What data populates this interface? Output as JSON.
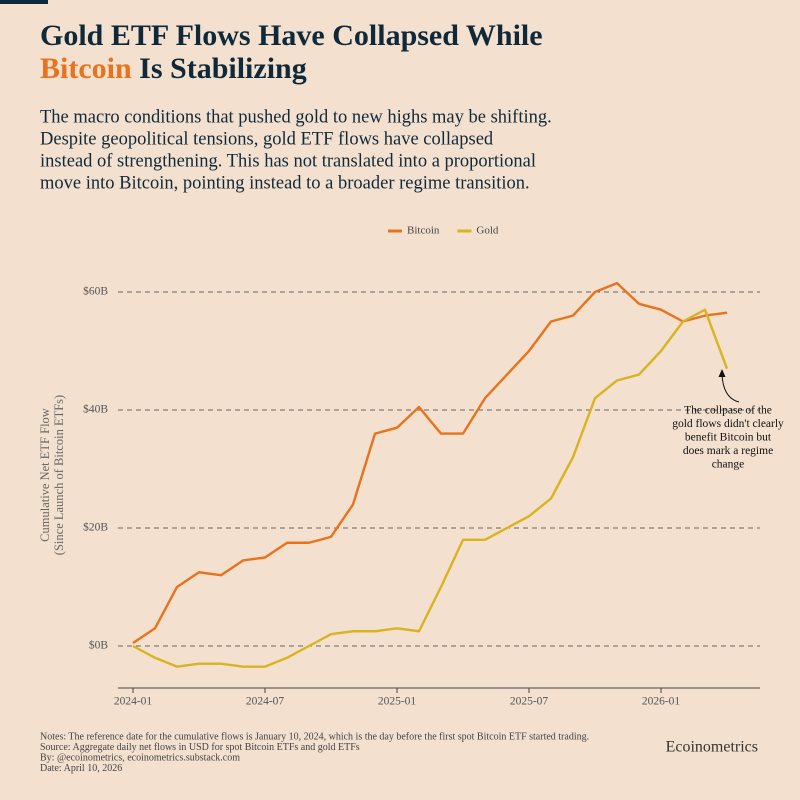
{
  "chart_data": {
    "type": "line",
    "title": {
      "line1": "Gold ETF Flows Have Collapsed While",
      "highlight": "Bitcoin",
      "rest": "Is Stabilizing"
    },
    "subtitle": [
      "The macro conditions that pushed gold to new highs may be shifting.",
      "Despite geopolitical tensions, gold ETF flows have collapsed",
      "instead of strengthening. This has not translated into a proportional",
      "move into Bitcoin, pointing instead to a broader regime transition."
    ],
    "y_label": [
      "Cumulative Net ETF Flow",
      "(Since Launch of Bitcoin ETFs)"
    ],
    "x": [
      "2024-01",
      "2024-02",
      "2024-03",
      "2024-04",
      "2024-05",
      "2024-06",
      "2024-07",
      "2024-08",
      "2024-09",
      "2024-10",
      "2024-11",
      "2024-12",
      "2025-01",
      "2025-02",
      "2025-03",
      "2025-04",
      "2025-05",
      "2025-06",
      "2025-07",
      "2025-08",
      "2025-09",
      "2025-10",
      "2025-11",
      "2025-12",
      "2026-01",
      "2026-02",
      "2026-03",
      "2026-04"
    ],
    "xticks": [
      "2024-01",
      "2024-07",
      "2025-01",
      "2025-07",
      "2026-01"
    ],
    "series": [
      {
        "name": "Bitcoin",
        "color": "#e8731c",
        "values": [
          0.5,
          3,
          10,
          12.5,
          12,
          14.5,
          15,
          17.5,
          17.5,
          18.5,
          24,
          36,
          37,
          40.5,
          36,
          36,
          42,
          46,
          50,
          55,
          56,
          60,
          61.5,
          58,
          57,
          55,
          56,
          56.5
        ]
      },
      {
        "name": "Gold",
        "color": "#d9b320",
        "values": [
          0,
          -2,
          -3.5,
          -3,
          -3,
          -3.5,
          -3.5,
          -2,
          0,
          2,
          2.5,
          2.5,
          3,
          2.5,
          10,
          18,
          18,
          20,
          22,
          25,
          32,
          42,
          45,
          46,
          50,
          55,
          57,
          47
        ]
      }
    ],
    "ylim": [
      -7,
      65
    ],
    "yticks": [
      {
        "value": 0,
        "label": "$0B"
      },
      {
        "value": 20,
        "label": "$20B"
      },
      {
        "value": 40,
        "label": "$40B"
      },
      {
        "value": 60,
        "label": "$60B"
      }
    ],
    "grid": true,
    "legend": "top",
    "annotation": [
      "The collpase of the",
      "gold flows didn't clearly",
      "benefit Bitcoin but",
      "does mark a regime",
      "change"
    ]
  },
  "notes": [
    "Notes: The reference date for the cumulative flows is January 10, 2024, which is the day before the first spot Bitcoin ETF started trading.",
    "Source: Aggregate daily net flows in USD for spot Bitcoin ETFs and gold ETFs",
    "By: @ecoinometrics, ecoinometrics.substack.com",
    "Date: April 10, 2026"
  ],
  "brand": "Ecoinometrics"
}
